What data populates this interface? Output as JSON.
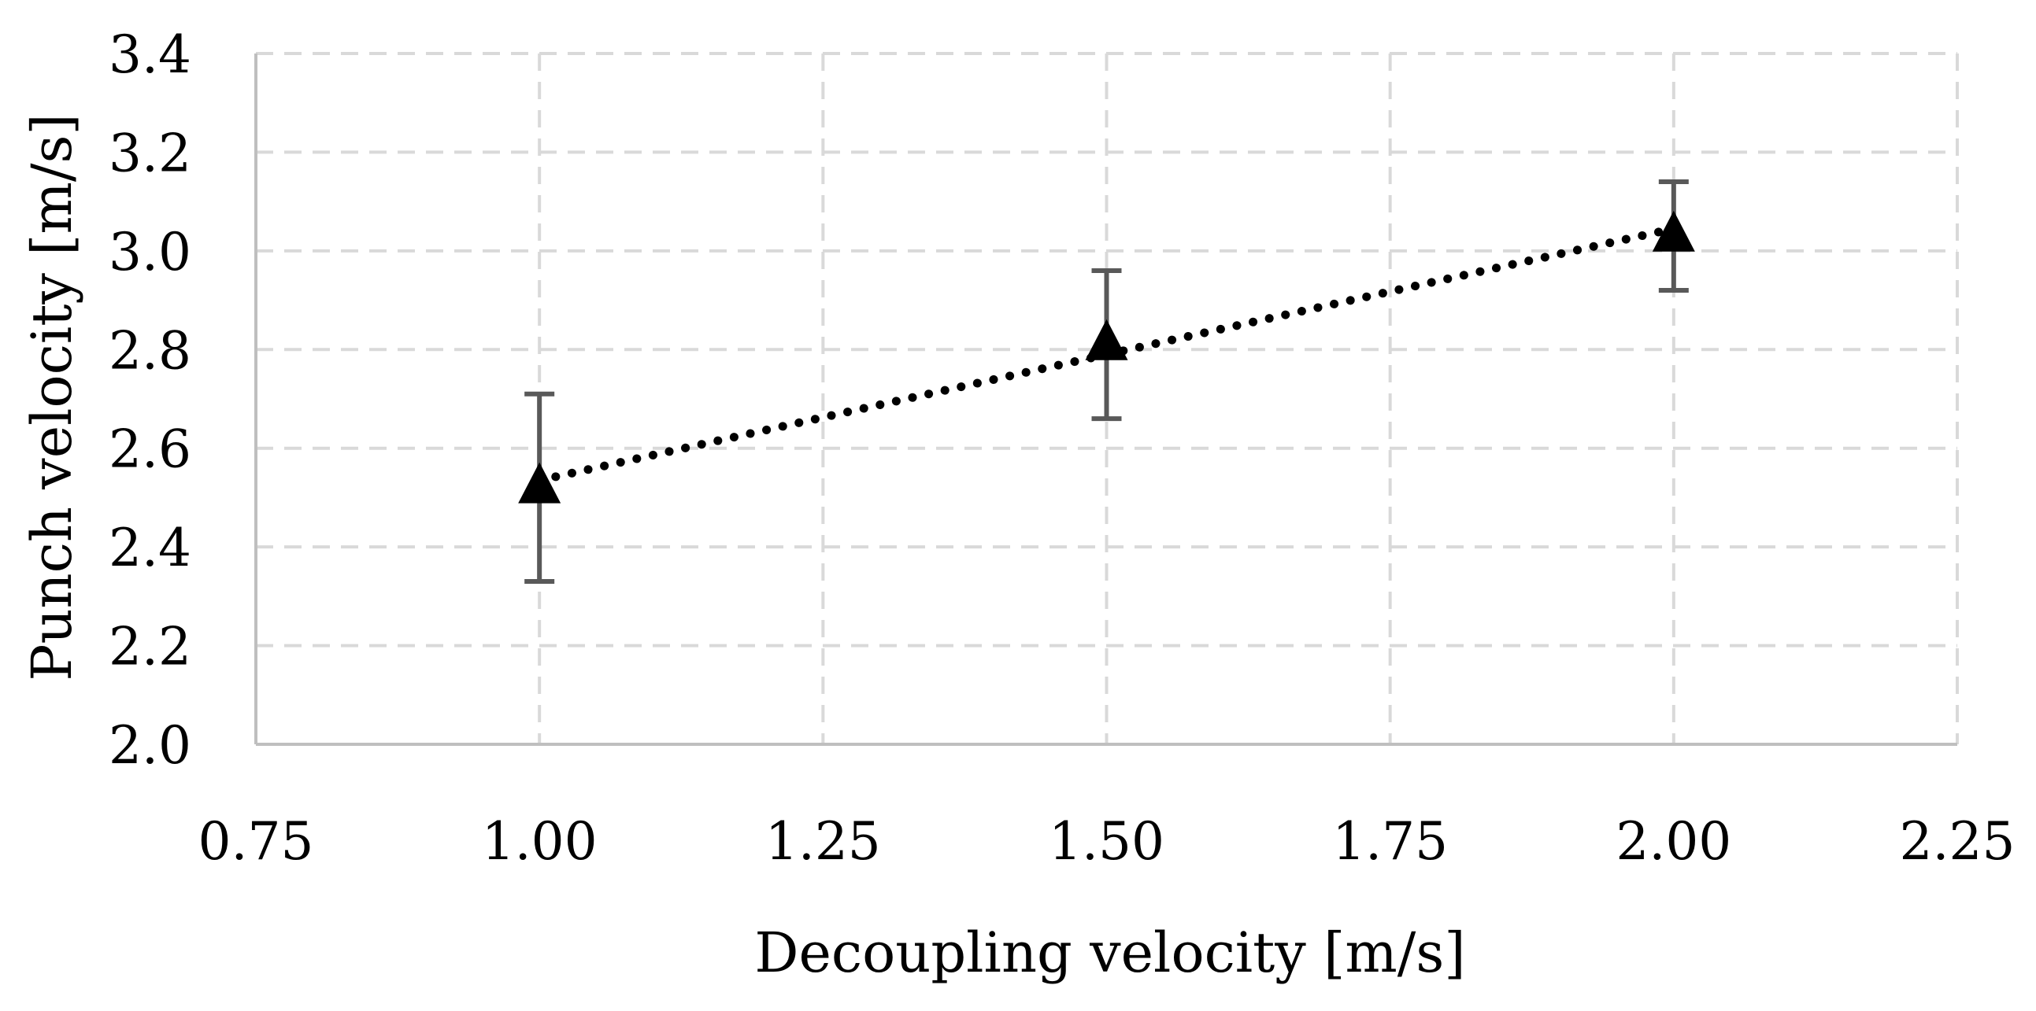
{
  "chart_data": {
    "type": "scatter",
    "title": "",
    "xlabel": "Decoupling velocity [m/s]",
    "ylabel": "Punch velocity [m/s]",
    "xlim": [
      0.75,
      2.25
    ],
    "ylim": [
      2.0,
      3.4
    ],
    "x_ticks": [
      0.75,
      1.0,
      1.25,
      1.5,
      1.75,
      2.0,
      2.25
    ],
    "x_tick_labels": [
      "0.75",
      "1.00",
      "1.25",
      "1.50",
      "1.75",
      "2.00",
      "2.25"
    ],
    "y_ticks": [
      2.0,
      2.2,
      2.4,
      2.6,
      2.8,
      3.0,
      3.2,
      3.4
    ],
    "y_tick_labels": [
      "2.0",
      "2.2",
      "2.4",
      "2.6",
      "2.8",
      "3.0",
      "3.2",
      "3.4"
    ],
    "grid": true,
    "series": [
      {
        "name": "Punch velocity",
        "marker": "triangle",
        "x": [
          1.0,
          1.5,
          2.0
        ],
        "y": [
          2.52,
          2.81,
          3.03
        ],
        "error_low": [
          2.33,
          2.66,
          2.92
        ],
        "error_high": [
          2.71,
          2.96,
          3.14
        ]
      }
    ],
    "trendline": {
      "type": "linear",
      "style": "dotted",
      "x": [
        1.0,
        2.0
      ],
      "y": [
        2.535,
        3.045
      ]
    },
    "colors": {
      "marker": "#000000",
      "error_bar": "#595959",
      "grid": "#d9d9d9",
      "axis": "#bfbfbf",
      "trendline": "#000000"
    }
  }
}
